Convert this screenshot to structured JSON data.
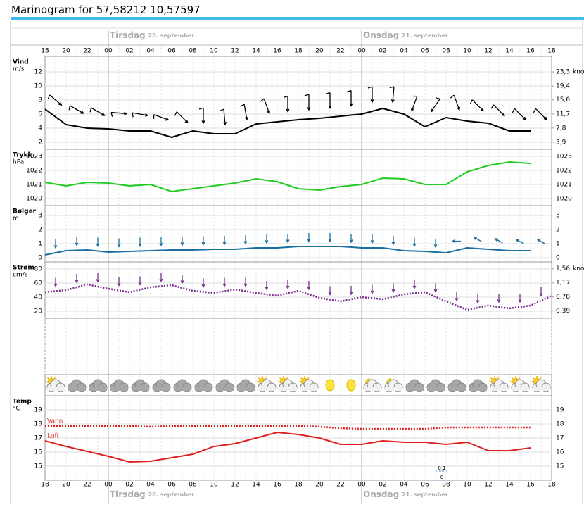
{
  "title": "Marinogram for 57,58212 10,57597",
  "time_axis": {
    "categories": [
      "18",
      "20",
      "22",
      "00",
      "02",
      "04",
      "06",
      "08",
      "10",
      "12",
      "14",
      "16",
      "18",
      "20",
      "22",
      "00",
      "02",
      "04",
      "06",
      "08",
      "10",
      "12",
      "14",
      "16",
      "18"
    ],
    "days": [
      {
        "name": "Tirsdag",
        "date": "20. september",
        "index": 3
      },
      {
        "name": "Onsdag",
        "date": "21. september",
        "index": 15
      }
    ]
  },
  "chart_data": [
    {
      "type": "line",
      "ylabel": "Vind",
      "yunit": "m/s",
      "ylim": [
        1,
        13
      ],
      "yticks": [
        12,
        10,
        8,
        6,
        4,
        2
      ],
      "y2unit": "knop",
      "y2lim": [
        1.94,
        25.27
      ],
      "y2ticks": [
        {
          "value": 23.3,
          "label": "23,3"
        },
        {
          "value": 19.4,
          "label": "19,4"
        },
        {
          "value": 15.6,
          "label": "15,6"
        },
        {
          "value": 11.7,
          "label": "11,7"
        },
        {
          "value": 7.8,
          "label": "7,8"
        },
        {
          "value": 3.9,
          "label": "3,9"
        }
      ],
      "series": [
        {
          "color": "#000000",
          "style": "solid",
          "arrows": "barb",
          "values": [
            6.7,
            4.5,
            4.0,
            3.9,
            3.6,
            3.6,
            2.7,
            3.6,
            3.2,
            3.2,
            4.6,
            4.9,
            5.2,
            5.4,
            5.7,
            6.0,
            6.8,
            6.0,
            4.2,
            5.5,
            5.0,
            4.7,
            3.6,
            3.6,
            null
          ],
          "directions": [
            310,
            300,
            300,
            275,
            280,
            290,
            315,
            0,
            355,
            350,
            340,
            0,
            0,
            0,
            0,
            0,
            5,
            20,
            35,
            340,
            315,
            315,
            315,
            315
          ]
        }
      ]
    },
    {
      "type": "line",
      "ylabel": "Trykk",
      "yunit": "hPa",
      "ylim": [
        1019.5,
        1023.5
      ],
      "yticks": [
        1023,
        1022,
        1021,
        1020
      ],
      "mirror_ticks": true,
      "series": [
        {
          "color": "#22cc22",
          "style": "solid",
          "values": [
            1021.15,
            1020.9,
            1021.15,
            1021.1,
            1020.9,
            1021.0,
            1020.5,
            1020.7,
            1020.9,
            1021.1,
            1021.4,
            1021.2,
            1020.7,
            1020.6,
            1020.85,
            1021.0,
            1021.45,
            1021.4,
            1021.0,
            1021.0,
            1021.9,
            1022.35,
            1022.6,
            1022.5,
            null
          ]
        }
      ]
    },
    {
      "type": "line",
      "ylabel": "Bølger",
      "yunit": "m",
      "ylim": [
        -0.3,
        3.7
      ],
      "yticks": [
        3,
        2,
        1,
        0
      ],
      "mirror_ticks": true,
      "series": [
        {
          "color": "#1a6fa0",
          "style": "solid",
          "arrows": "plain",
          "values": [
            0.2,
            0.5,
            0.55,
            0.4,
            0.45,
            0.5,
            0.55,
            0.55,
            0.6,
            0.6,
            0.7,
            0.7,
            0.8,
            0.8,
            0.8,
            0.7,
            0.7,
            0.5,
            0.45,
            0.35,
            0.7,
            0.6,
            0.5,
            0.5,
            null
          ],
          "directions": [
            0,
            0,
            0,
            0,
            0,
            0,
            0,
            0,
            0,
            0,
            0,
            0,
            0,
            0,
            0,
            0,
            0,
            0,
            0,
            90,
            120,
            120,
            120,
            120
          ]
        }
      ]
    },
    {
      "type": "line",
      "ylabel": "Strøm",
      "yunit": "cm/s",
      "ylim": [
        10,
        90
      ],
      "yticks": [
        80,
        60,
        40,
        20
      ],
      "y2unit": "knop",
      "y2lim": [
        0.19,
        1.75
      ],
      "y2ticks": [
        {
          "value": 1.56,
          "label": "1,56"
        },
        {
          "value": 1.17,
          "label": "1,17"
        },
        {
          "value": 0.78,
          "label": "0,78"
        },
        {
          "value": 0.39,
          "label": "0,39"
        }
      ],
      "series": [
        {
          "color": "#7b2d8e",
          "style": "dotted",
          "arrows": "plain",
          "values": [
            47,
            50,
            58,
            52,
            47,
            54,
            57,
            49,
            46,
            51,
            46,
            42,
            49,
            39,
            34,
            40,
            37,
            44,
            47,
            34,
            22,
            28,
            24,
            28,
            42
          ],
          "directions": [
            0,
            0,
            0,
            0,
            0,
            0,
            0,
            0,
            0,
            0,
            0,
            0,
            0,
            0,
            0,
            0,
            0,
            0,
            0,
            0,
            0,
            0,
            0,
            0
          ]
        }
      ]
    },
    {
      "type": "symbols",
      "symbols": [
        "partly-cloudy",
        "cloudy",
        "cloudy",
        "cloudy",
        "cloudy",
        "cloudy",
        "cloudy",
        "cloudy",
        "cloudy",
        "cloudy",
        "partly-cloudy",
        "partly-cloudy",
        "partly-cloudy",
        "clear-night",
        "clear-night",
        "partly-cloudy-night",
        "partly-cloudy-night",
        "cloudy",
        "cloudy",
        "cloudy",
        "cloudy",
        "partly-cloudy",
        "partly-cloudy",
        "partly-cloudy"
      ]
    },
    {
      "type": "line",
      "ylabel": "Temp",
      "yunit": "°C",
      "ylim": [
        14,
        20
      ],
      "yticks": [
        19,
        18,
        17,
        16,
        15
      ],
      "mirror_ticks": true,
      "series": [
        {
          "name": "Vann",
          "color": "#e02020",
          "style": "dotted",
          "values": [
            17.85,
            17.85,
            17.85,
            17.85,
            17.85,
            17.8,
            17.85,
            17.85,
            17.85,
            17.85,
            17.85,
            17.85,
            17.85,
            17.8,
            17.7,
            17.65,
            17.65,
            17.65,
            17.65,
            17.75,
            17.75,
            17.75,
            17.75,
            17.75,
            null
          ]
        },
        {
          "name": "Luft",
          "color": "#e02020",
          "style": "solid",
          "values": [
            16.8,
            16.4,
            16.05,
            15.7,
            15.3,
            15.35,
            15.6,
            15.85,
            16.4,
            16.6,
            17.0,
            17.4,
            17.25,
            17.0,
            16.55,
            16.55,
            16.8,
            16.7,
            16.7,
            16.55,
            16.7,
            16.1,
            16.1,
            16.3,
            null
          ]
        }
      ]
    }
  ],
  "precip": {
    "scale": [
      {
        "value": 0.1,
        "label": "0,1"
      },
      {
        "value": 0,
        "label": "0"
      }
    ]
  }
}
